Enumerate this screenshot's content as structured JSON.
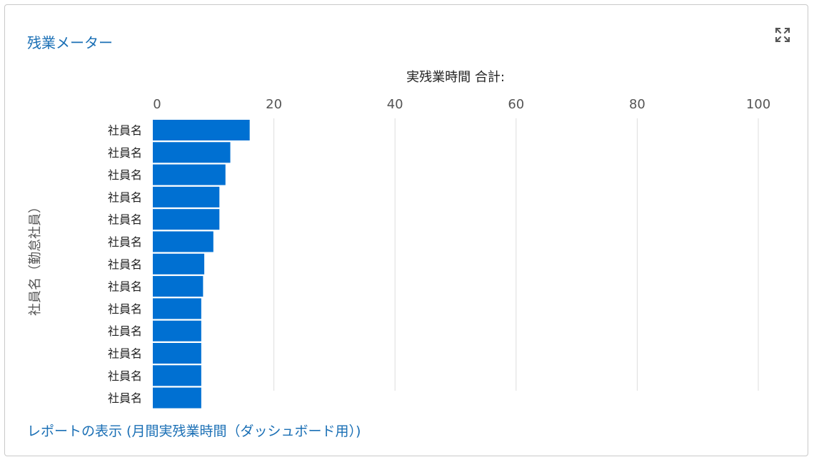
{
  "widget": {
    "title": "残業メーター",
    "expand_icon": "expand-icon",
    "report_link": "レポートの表示 (月間実残業時間（ダッシュボード用）)"
  },
  "colors": {
    "bar": "#0070d2",
    "link": "#1a6fb5",
    "grid": "#dddddd",
    "text": "#222222",
    "axis_label": "#555555"
  },
  "chart_data": {
    "type": "bar",
    "orientation": "horizontal",
    "title": "実残業時間 合計:",
    "ylabel": "社員名（勤怠社員）",
    "xlabel": "",
    "xlim": [
      0,
      100
    ],
    "xticks": [
      0,
      20,
      40,
      60,
      80,
      100
    ],
    "categories": [
      "社員名",
      "社員名",
      "社員名",
      "社員名",
      "社員名",
      "社員名",
      "社員名",
      "社員名",
      "社員名",
      "社員名",
      "社員名",
      "社員名",
      "社員名"
    ],
    "values": [
      16,
      12.8,
      12,
      11,
      11,
      10,
      8.5,
      8.3,
      8,
      8,
      8,
      8,
      8
    ],
    "grid": true
  }
}
